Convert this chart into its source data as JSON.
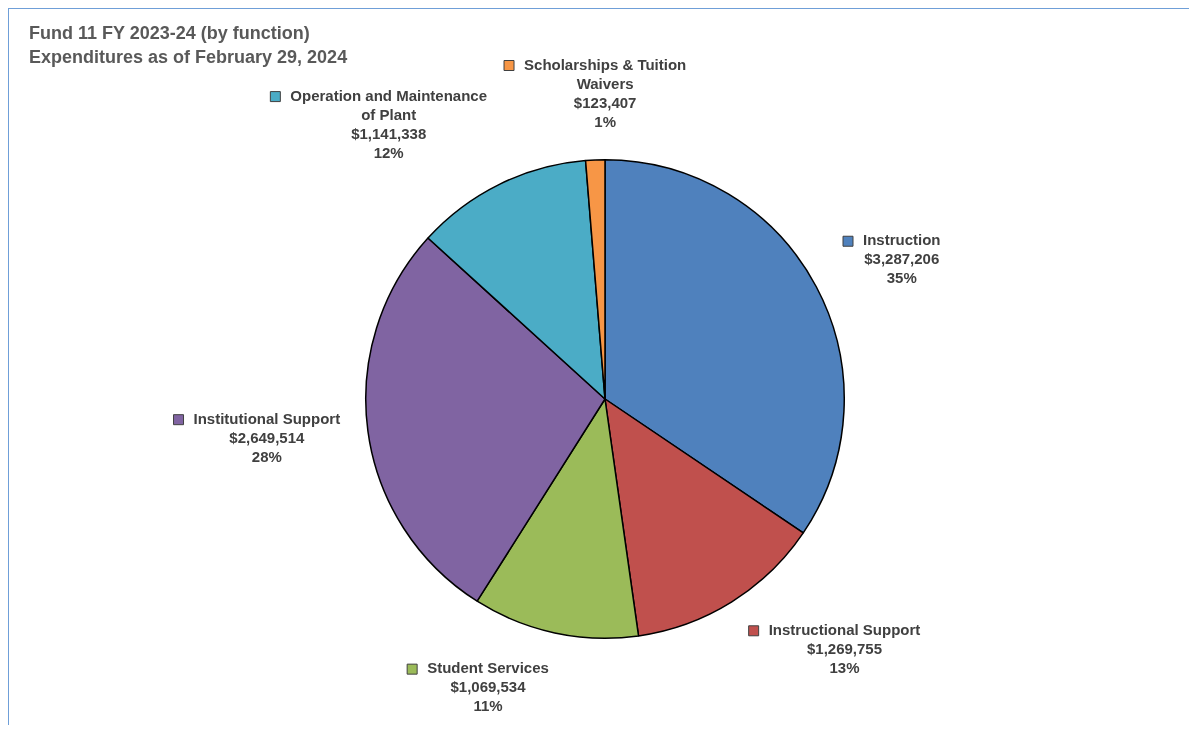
{
  "chart_data": {
    "type": "pie",
    "title": "Fund 11 FY 2023-24 (by function)",
    "subtitle": "Expenditures as of February 29, 2024",
    "categories": [
      "Instruction",
      "Instructional Support",
      "Student Services",
      "Institutional Support",
      "Operation and Maintenance of Plant",
      "Scholarships & Tuition Waivers"
    ],
    "values": [
      3287206,
      1269755,
      1069534,
      2649514,
      1141338,
      123407
    ],
    "colors": [
      "#4f81bd",
      "#c0504d",
      "#9bbb59",
      "#8064a2",
      "#4bacc6",
      "#f79646"
    ],
    "value_labels": [
      "$3,287,206\n35%",
      "$1,269,755\n13%",
      "$1,069,534\n11%",
      "$2,649,514\n28%",
      "$1,141,338\n12%",
      "$123,407\n1%"
    ],
    "legend": "top left"
  }
}
